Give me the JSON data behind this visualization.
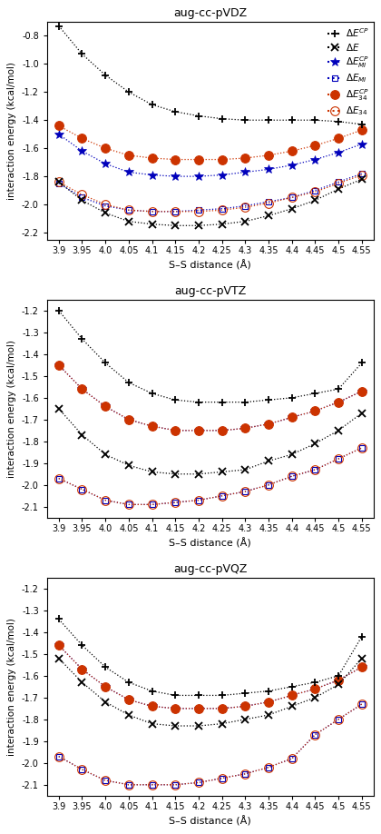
{
  "x": [
    3.9,
    3.95,
    4.0,
    4.05,
    4.1,
    4.15,
    4.2,
    4.25,
    4.3,
    4.35,
    4.4,
    4.45,
    4.5,
    4.55
  ],
  "panels": [
    {
      "title": "aug-cc-pVDZ",
      "ylim": [
        -2.25,
        -0.7
      ],
      "yticks": [
        -2.2,
        -2.0,
        -1.8,
        -1.6,
        -1.4,
        -1.2,
        -1.0,
        -0.8
      ],
      "series": {
        "dECP": [
          -0.73,
          -0.93,
          -1.08,
          -1.2,
          -1.29,
          -1.34,
          -1.37,
          -1.39,
          -1.4,
          -1.4,
          -1.4,
          -1.4,
          -1.41,
          -1.43
        ],
        "dE": [
          -1.84,
          -1.97,
          -2.06,
          -2.12,
          -2.14,
          -2.15,
          -2.15,
          -2.14,
          -2.12,
          -2.08,
          -2.03,
          -1.97,
          -1.89,
          -1.82
        ],
        "dEMICP": [
          -1.5,
          -1.62,
          -1.71,
          -1.77,
          -1.79,
          -1.8,
          -1.8,
          -1.79,
          -1.77,
          -1.75,
          -1.72,
          -1.68,
          -1.63,
          -1.57
        ],
        "dEMI": [
          -1.85,
          -1.95,
          -2.01,
          -2.04,
          -2.05,
          -2.05,
          -2.04,
          -2.03,
          -2.01,
          -1.98,
          -1.95,
          -1.9,
          -1.84,
          -1.78
        ],
        "dE34CP": [
          -1.44,
          -1.53,
          -1.6,
          -1.65,
          -1.67,
          -1.68,
          -1.68,
          -1.68,
          -1.67,
          -1.65,
          -1.62,
          -1.58,
          -1.53,
          -1.47
        ],
        "dE34": [
          -1.84,
          -1.93,
          -2.0,
          -2.04,
          -2.05,
          -2.05,
          -2.05,
          -2.04,
          -2.02,
          -1.99,
          -1.95,
          -1.91,
          -1.85,
          -1.79
        ]
      }
    },
    {
      "title": "aug-cc-pVTZ",
      "ylim": [
        -2.15,
        -1.15
      ],
      "yticks": [
        -2.1,
        -2.0,
        -1.9,
        -1.8,
        -1.7,
        -1.6,
        -1.5,
        -1.4,
        -1.3,
        -1.2
      ],
      "series": {
        "dECP": [
          -1.2,
          -1.33,
          -1.44,
          -1.53,
          -1.58,
          -1.61,
          -1.62,
          -1.62,
          -1.62,
          -1.61,
          -1.6,
          -1.58,
          -1.56,
          -1.44
        ],
        "dE": [
          -1.65,
          -1.77,
          -1.86,
          -1.91,
          -1.94,
          -1.95,
          -1.95,
          -1.94,
          -1.93,
          -1.89,
          -1.86,
          -1.81,
          -1.75,
          -1.67
        ],
        "dEMICP": [
          -1.45,
          -1.56,
          -1.64,
          -1.7,
          -1.73,
          -1.75,
          -1.75,
          -1.75,
          -1.74,
          -1.72,
          -1.69,
          -1.66,
          -1.62,
          -1.57
        ],
        "dEMI": [
          -1.97,
          -2.02,
          -2.07,
          -2.09,
          -2.09,
          -2.08,
          -2.07,
          -2.05,
          -2.03,
          -2.0,
          -1.96,
          -1.93,
          -1.88,
          -1.83
        ],
        "dE34CP": [
          -1.45,
          -1.56,
          -1.64,
          -1.7,
          -1.73,
          -1.75,
          -1.75,
          -1.75,
          -1.74,
          -1.72,
          -1.69,
          -1.66,
          -1.62,
          -1.57
        ],
        "dE34": [
          -1.97,
          -2.02,
          -2.07,
          -2.09,
          -2.09,
          -2.08,
          -2.07,
          -2.05,
          -2.03,
          -2.0,
          -1.96,
          -1.93,
          -1.88,
          -1.83
        ]
      }
    },
    {
      "title": "aug-cc-pVQZ",
      "ylim": [
        -2.15,
        -1.15
      ],
      "yticks": [
        -2.1,
        -2.0,
        -1.9,
        -1.8,
        -1.7,
        -1.6,
        -1.5,
        -1.4,
        -1.3,
        -1.2
      ],
      "series": {
        "dECP": [
          -1.34,
          -1.46,
          -1.56,
          -1.63,
          -1.67,
          -1.69,
          -1.69,
          -1.69,
          -1.68,
          -1.67,
          -1.65,
          -1.63,
          -1.6,
          -1.42
        ],
        "dE": [
          -1.52,
          -1.63,
          -1.72,
          -1.78,
          -1.82,
          -1.83,
          -1.83,
          -1.82,
          -1.8,
          -1.78,
          -1.74,
          -1.7,
          -1.64,
          -1.52
        ],
        "dEMICP": [
          -1.46,
          -1.57,
          -1.65,
          -1.71,
          -1.74,
          -1.75,
          -1.75,
          -1.75,
          -1.74,
          -1.72,
          -1.69,
          -1.66,
          -1.62,
          -1.56
        ],
        "dEMI": [
          -1.97,
          -2.03,
          -2.08,
          -2.1,
          -2.1,
          -2.1,
          -2.09,
          -2.07,
          -2.05,
          -2.02,
          -1.98,
          -1.87,
          -1.8,
          -1.73
        ],
        "dE34CP": [
          -1.46,
          -1.57,
          -1.65,
          -1.71,
          -1.74,
          -1.75,
          -1.75,
          -1.75,
          -1.74,
          -1.72,
          -1.69,
          -1.66,
          -1.62,
          -1.56
        ],
        "dE34": [
          -1.97,
          -2.03,
          -2.08,
          -2.1,
          -2.1,
          -2.1,
          -2.09,
          -2.07,
          -2.05,
          -2.02,
          -1.98,
          -1.87,
          -1.8,
          -1.73
        ]
      }
    }
  ],
  "colors": {
    "dECP": "#000000",
    "dE": "#000000",
    "dEMICP": "#0000bb",
    "dEMI": "#0000bb",
    "dE34CP": "#cc3300",
    "dE34": "#cc3300"
  },
  "xlabel": "S–S distance (Å)",
  "ylabel": "interaction energy (kcal/mol)"
}
